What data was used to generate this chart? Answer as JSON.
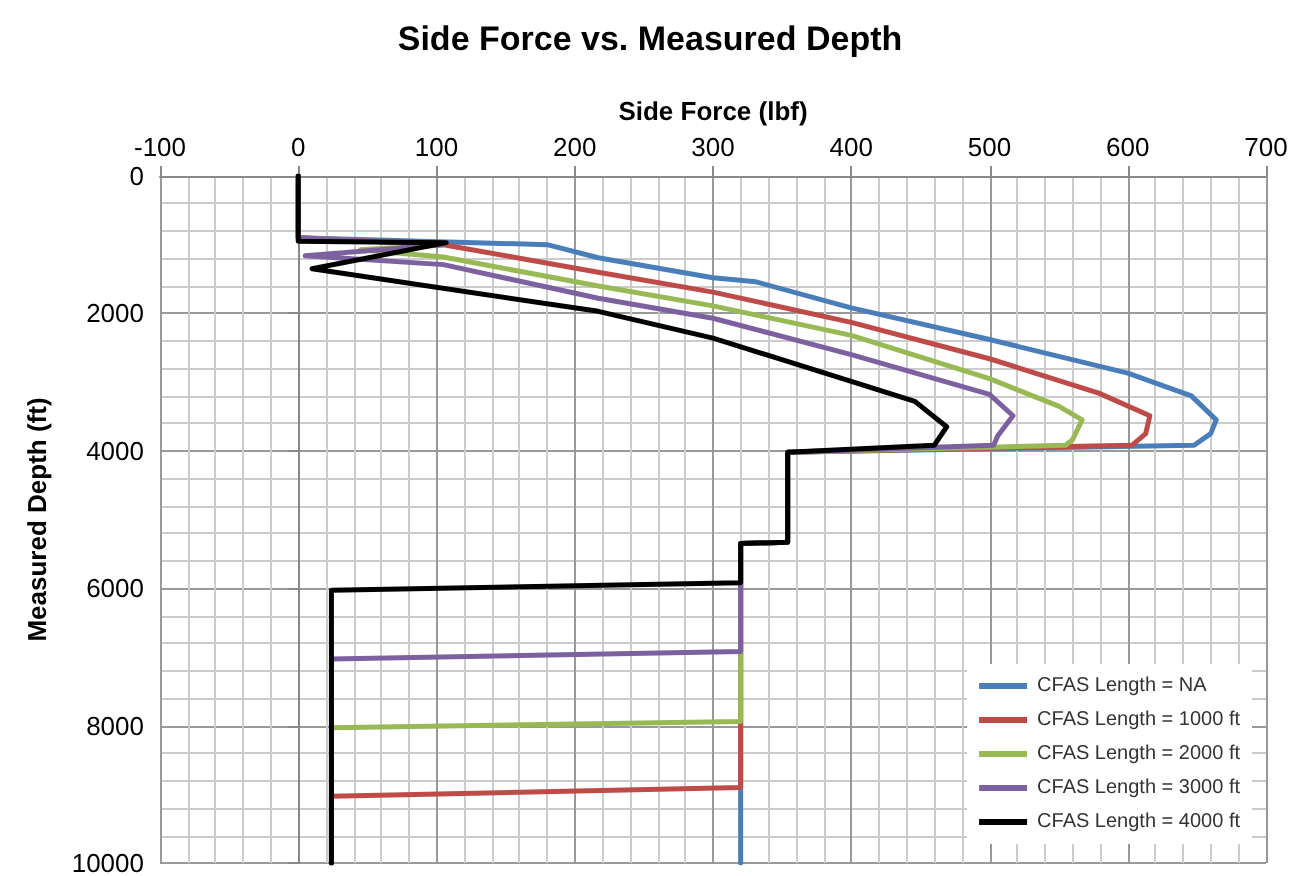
{
  "chart_data": {
    "type": "line",
    "title": "Side Force vs. Measured Depth",
    "xlabel": "Side Force (lbf)",
    "ylabel": "Measured Depth (ft)",
    "xlim": [
      -100,
      700
    ],
    "xticks": [
      -100,
      0,
      100,
      200,
      300,
      400,
      500,
      600,
      700
    ],
    "ylim": [
      10000,
      0
    ],
    "yticks": [
      0,
      2000,
      4000,
      6000,
      8000,
      10000
    ],
    "grid": true,
    "legend": "bottom right",
    "marker": "none",
    "series": [
      {
        "name": "CFAS Length = NA",
        "color": "#4a7ebb",
        "x": [
          0,
          0,
          180,
          217,
          300,
          331,
          400,
          500,
          600,
          646,
          664,
          660,
          648,
          354,
          354,
          320,
          320
        ],
        "values": [
          0,
          900,
          1000,
          1190,
          1480,
          1540,
          1920,
          2380,
          2870,
          3200,
          3550,
          3750,
          3920,
          4020,
          5330,
          5350,
          10000
        ]
      },
      {
        "name": "CFAS Length = 1000 ft",
        "color": "#be4b48",
        "x": [
          0,
          0,
          105,
          217,
          300,
          400,
          500,
          579,
          616,
          613,
          603,
          354,
          354,
          320,
          320,
          24,
          24
        ],
        "values": [
          0,
          900,
          1000,
          1400,
          1690,
          2130,
          2660,
          3160,
          3490,
          3750,
          3920,
          4020,
          5330,
          5350,
          8900,
          9030,
          10000
        ]
      },
      {
        "name": "CFAS Length = 2000 ft",
        "color": "#98b954",
        "x": [
          0,
          0,
          105,
          45,
          105,
          217,
          300,
          400,
          500,
          550,
          567,
          560,
          555,
          354,
          354,
          320,
          320,
          24,
          24
        ],
        "values": [
          0,
          900,
          1000,
          1075,
          1180,
          1600,
          1890,
          2320,
          2950,
          3350,
          3550,
          3840,
          3920,
          4020,
          5330,
          5350,
          7940,
          8030,
          10000
        ]
      },
      {
        "name": "CFAS Length = 3000 ft",
        "color": "#7d60a0",
        "x": [
          0,
          0,
          105,
          5,
          105,
          217,
          300,
          400,
          500,
          517,
          506,
          503,
          354,
          354,
          320,
          320,
          24,
          24
        ],
        "values": [
          0,
          900,
          1000,
          1160,
          1290,
          1780,
          2070,
          2600,
          3180,
          3490,
          3780,
          3920,
          4020,
          5330,
          5350,
          6920,
          7030,
          10000
        ]
      },
      {
        "name": "CFAS Length = 4000 ft",
        "color": "#000000",
        "x": [
          0,
          0,
          107,
          10,
          217,
          300,
          400,
          446,
          469,
          460,
          354,
          354,
          320,
          320,
          24,
          24
        ],
        "values": [
          0,
          950,
          970,
          1350,
          1970,
          2360,
          2990,
          3280,
          3650,
          3920,
          4020,
          5330,
          5350,
          5920,
          6030,
          10000
        ]
      }
    ]
  }
}
